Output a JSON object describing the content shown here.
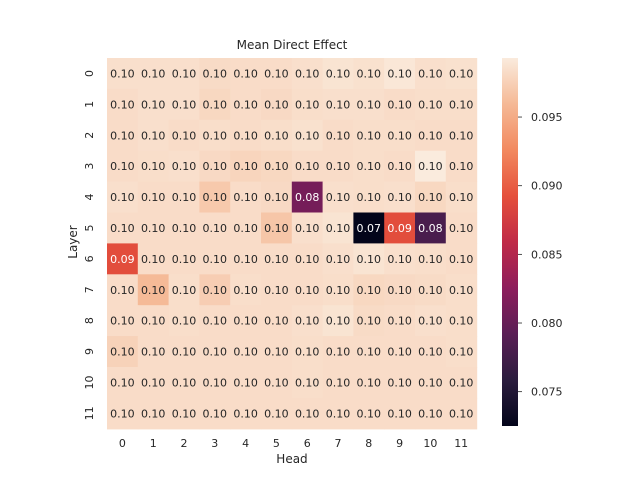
{
  "chart_data": {
    "type": "heatmap",
    "title": "Mean Direct Effect",
    "xlabel": "Head",
    "ylabel": "Layer",
    "x_ticks": [
      "0",
      "1",
      "2",
      "3",
      "4",
      "5",
      "6",
      "7",
      "8",
      "9",
      "10",
      "11"
    ],
    "y_ticks": [
      "0",
      "1",
      "2",
      "3",
      "4",
      "5",
      "6",
      "7",
      "8",
      "9",
      "10",
      "11"
    ],
    "values": [
      [
        0.0985,
        0.0985,
        0.0985,
        0.0982,
        0.0983,
        0.0983,
        0.0985,
        0.0988,
        0.0986,
        0.099,
        0.0985,
        0.0986
      ],
      [
        0.0983,
        0.0985,
        0.0985,
        0.098,
        0.0983,
        0.0981,
        0.0984,
        0.0985,
        0.0985,
        0.0983,
        0.0984,
        0.0984
      ],
      [
        0.0983,
        0.0985,
        0.0983,
        0.0984,
        0.0983,
        0.0984,
        0.0986,
        0.0983,
        0.0984,
        0.0984,
        0.0983,
        0.0983
      ],
      [
        0.0983,
        0.0984,
        0.0985,
        0.0981,
        0.0978,
        0.098,
        0.0983,
        0.0983,
        0.0984,
        0.0983,
        0.0993,
        0.0983
      ],
      [
        0.0985,
        0.0983,
        0.0983,
        0.097,
        0.0983,
        0.0981,
        0.081,
        0.0985,
        0.0984,
        0.0985,
        0.098,
        0.0984
      ],
      [
        0.0983,
        0.0983,
        0.0983,
        0.0983,
        0.0983,
        0.0968,
        0.0985,
        0.0988,
        0.0725,
        0.089,
        0.078,
        0.0983
      ],
      [
        0.089,
        0.0983,
        0.0983,
        0.0983,
        0.0983,
        0.0983,
        0.0983,
        0.0985,
        0.0988,
        0.0985,
        0.0984,
        0.0983
      ],
      [
        0.0983,
        0.096,
        0.0984,
        0.0973,
        0.0984,
        0.0983,
        0.0983,
        0.0984,
        0.098,
        0.0981,
        0.0982,
        0.0984
      ],
      [
        0.0983,
        0.0983,
        0.0984,
        0.0983,
        0.0983,
        0.0983,
        0.0985,
        0.0988,
        0.0982,
        0.0983,
        0.0985,
        0.0984
      ],
      [
        0.0976,
        0.0983,
        0.0983,
        0.0983,
        0.0983,
        0.0983,
        0.0984,
        0.0983,
        0.0983,
        0.0983,
        0.0983,
        0.0984
      ],
      [
        0.0983,
        0.0983,
        0.0983,
        0.0983,
        0.0983,
        0.0983,
        0.0984,
        0.0983,
        0.0983,
        0.0983,
        0.0983,
        0.0983
      ],
      [
        0.0983,
        0.0983,
        0.0983,
        0.0983,
        0.0983,
        0.0983,
        0.0983,
        0.0983,
        0.0983,
        0.0983,
        0.0983,
        0.0983
      ]
    ],
    "annotation_decimals": 2,
    "colormap": "rocket",
    "vmin": 0.0725,
    "vmax": 0.0993,
    "colorbar_ticks": [
      0.075,
      0.08,
      0.085,
      0.09,
      0.095
    ],
    "colorbar_tick_labels": [
      "0.075",
      "0.080",
      "0.085",
      "0.090",
      "0.095"
    ],
    "grid": false
  }
}
